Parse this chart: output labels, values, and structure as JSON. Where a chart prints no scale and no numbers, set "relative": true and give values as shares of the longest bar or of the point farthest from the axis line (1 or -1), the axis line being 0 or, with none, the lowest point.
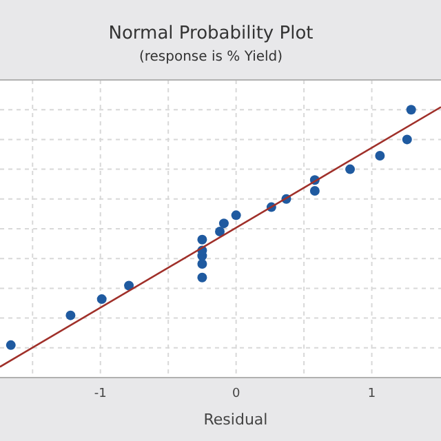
{
  "chart_data": {
    "type": "scatter",
    "title": "Normal Probability Plot",
    "subtitle": "(response is % Yield)",
    "xlabel": "Residual",
    "relative": true,
    "xlim": [
      -1.74,
      1.51
    ],
    "xticks": [
      {
        "value": -1.5,
        "label": null
      },
      -1,
      {
        "value": -0.5,
        "label": null
      },
      0,
      {
        "value": 0.5,
        "label": null
      },
      1
    ],
    "grid": true,
    "tick_labels": "x",
    "marker": "circle",
    "series": [
      {
        "color": "#1f5aa0",
        "x": [
          -1.66,
          -1.22,
          -0.99,
          -0.79,
          -0.25,
          -0.25,
          -0.25,
          -0.25,
          -0.25,
          -0.12,
          -0.09,
          0,
          0.26,
          0.37,
          0.58,
          0.58,
          0.84,
          1.06,
          1.26,
          1.29
        ],
        "values": [
          0.12,
          0.23,
          0.29,
          0.34,
          0.37,
          0.42,
          0.45,
          0.47,
          0.51,
          0.54,
          0.57,
          0.6,
          0.63,
          0.66,
          0.69,
          0.73,
          0.77,
          0.82,
          0.88,
          0.99
        ]
      },
      {
        "type": "line",
        "color": "#a0302a",
        "marker": "none",
        "x": [
          -1.74,
          1.51
        ],
        "values": [
          0.04,
          1.0
        ]
      }
    ]
  }
}
